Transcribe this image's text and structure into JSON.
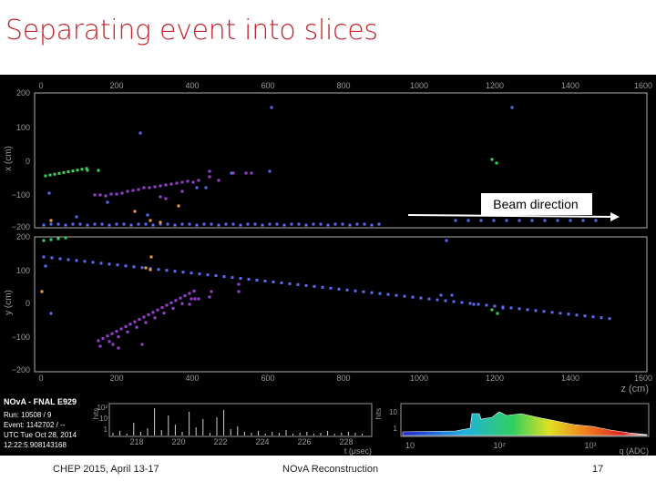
{
  "slide": {
    "title": "Separating event into slices",
    "annotation": "Beam direction",
    "footer_left": "CHEP 2015,  April 13-17",
    "footer_center": "NOvA Reconstruction",
    "page_number": "17"
  },
  "display": {
    "z_ticks": [
      "0",
      "200",
      "400",
      "600",
      "800",
      "1000",
      "1200",
      "1400",
      "1600"
    ],
    "x_ticks": [
      "200",
      "100",
      "0",
      "−100",
      "−200"
    ],
    "y_ticks": [
      "200",
      "100",
      "0",
      "−100",
      "−200"
    ],
    "x_label": "x (cm)",
    "y_label": "y (cm)",
    "z_label": "z (cm)",
    "experiment": "NOvA - FNAL E929",
    "run": "Run:  10508 / 9",
    "event": "Event:  1142702 / --",
    "utc": "UTC Tue Oct 28, 2014",
    "time": "12:22:5.908143168",
    "time_hist_ticks": [
      "218",
      "220",
      "222",
      "224",
      "226",
      "228"
    ],
    "time_hist_xlabel": "t (μsec)",
    "hits_label": "hits",
    "time_hist_yticks": [
      "10²",
      "10",
      "1"
    ],
    "charge_hist_ticks": [
      "10",
      "10²",
      "10³"
    ],
    "charge_hist_xlabel": "q (ADC)",
    "charge_hist_yticks": [
      "10",
      "1"
    ]
  },
  "colors": {
    "title": "#c0262d",
    "panel_bg": "#000000",
    "frame": "#b0b0b0",
    "hit_blue": "#5a6cf0",
    "hit_purple": "#9b3fd0",
    "hit_green": "#3cd35a",
    "hit_orange": "#f0a040"
  }
}
